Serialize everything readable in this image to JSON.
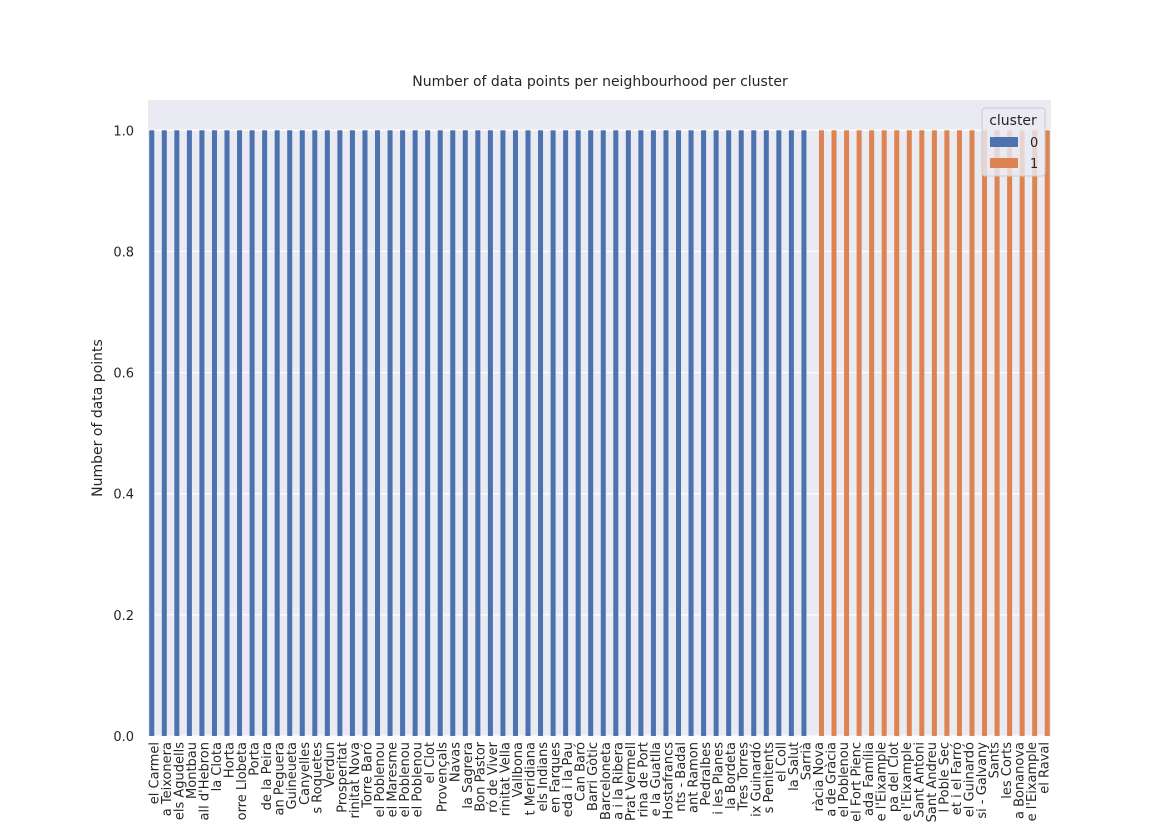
{
  "chart_data": {
    "type": "bar",
    "title": "Number of data points per neighbourhood per cluster",
    "ylabel": "Number of data points",
    "legend_title": "cluster",
    "legend_position": "upper right",
    "grid": true,
    "categories": [
      "el Carmel",
      "a Teixonera",
      "els Agudells",
      "Montbau",
      "all d'Hebron",
      "la Clota",
      "Horta",
      "orre Llobeta",
      "Porta",
      "de la Peira",
      "an Peguera",
      "Guineueta",
      "Canyelles",
      "s Roquetes",
      "Verdun",
      "Prosperitat",
      "rinitat Nova",
      "Torre Baró",
      "el Poblenou",
      "el Maresme",
      "el Poblenou",
      "el Poblenou",
      "el Clot",
      "Provençals",
      "Navas",
      "la Sagrera",
      "Bon Pastor",
      "ró de Viver",
      "rinitat Vella",
      "Vallbona",
      "t Meridiana",
      "els Indians",
      "en Farques",
      "eda i la Pau",
      "Can Baró",
      "Barri Gòtic",
      "Barceloneta",
      "a i la Ribera",
      "Prat Vermell",
      "rina de Port",
      "e la Guatlla",
      "Hostafrancs",
      "nts - Badal",
      "ant Ramon",
      "Pedralbes",
      "i les Planes",
      "la Bordeta",
      "Tres Torres",
      "ix Guinardó",
      "s Penitents",
      "el Coll",
      "la Salut",
      "Sarrià",
      "ràcia Nova",
      "a de Gràcia",
      "el Poblenou",
      "el Fort Pienc",
      "ada Família",
      "e l'Eixample",
      "pa del Clot",
      "e l'Eixample",
      "Sant Antoni",
      "Sant Andreu",
      "l Poble Sec",
      "et i el Farró",
      "el Guinardó",
      "si - Galvany",
      "Sants",
      "les Corts",
      "a Bonanova",
      "e l'Eixample",
      "el Raval"
    ],
    "series": [
      {
        "name": "0",
        "color": "#4c72b0",
        "values": [
          1,
          1,
          1,
          1,
          1,
          1,
          1,
          1,
          1,
          1,
          1,
          1,
          1,
          1,
          1,
          1,
          1,
          1,
          1,
          1,
          1,
          1,
          1,
          1,
          1,
          1,
          1,
          1,
          1,
          1,
          1,
          1,
          1,
          1,
          1,
          1,
          1,
          1,
          1,
          1,
          1,
          1,
          1,
          1,
          1,
          1,
          1,
          1,
          1,
          1,
          1,
          1,
          1,
          null,
          null,
          null,
          null,
          null,
          null,
          null,
          null,
          null,
          null,
          null,
          null,
          null,
          null,
          null,
          null,
          null,
          null,
          null
        ]
      },
      {
        "name": "1",
        "color": "#dd8452",
        "values": [
          null,
          null,
          null,
          null,
          null,
          null,
          null,
          null,
          null,
          null,
          null,
          null,
          null,
          null,
          null,
          null,
          null,
          null,
          null,
          null,
          null,
          null,
          null,
          null,
          null,
          null,
          null,
          null,
          null,
          null,
          null,
          null,
          null,
          null,
          null,
          null,
          null,
          null,
          null,
          null,
          null,
          null,
          null,
          null,
          null,
          null,
          null,
          null,
          null,
          null,
          null,
          null,
          null,
          1,
          1,
          1,
          1,
          1,
          1,
          1,
          1,
          1,
          1,
          1,
          1,
          1,
          1,
          1,
          1,
          1,
          1,
          1
        ]
      }
    ],
    "ylim": [
      0,
      1.05
    ],
    "yticks": [
      {
        "value": 0,
        "label": "0.0"
      },
      0.2,
      0.4,
      0.6,
      0.8,
      {
        "value": 1,
        "label": "1.0"
      }
    ]
  }
}
